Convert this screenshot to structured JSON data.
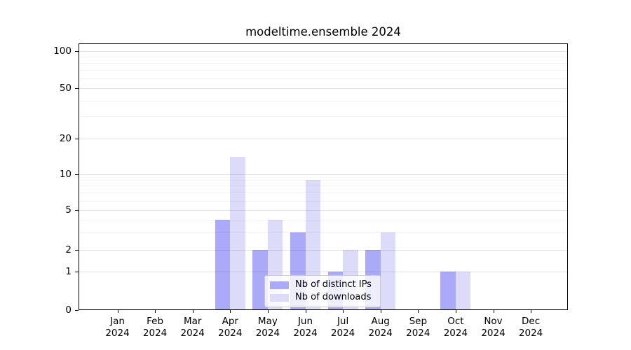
{
  "chart_data": {
    "type": "bar",
    "title": "modeltime.ensemble 2024",
    "x_categories": [
      {
        "month": "Jan",
        "year": "2024"
      },
      {
        "month": "Feb",
        "year": "2024"
      },
      {
        "month": "Mar",
        "year": "2024"
      },
      {
        "month": "Apr",
        "year": "2024"
      },
      {
        "month": "May",
        "year": "2024"
      },
      {
        "month": "Jun",
        "year": "2024"
      },
      {
        "month": "Jul",
        "year": "2024"
      },
      {
        "month": "Aug",
        "year": "2024"
      },
      {
        "month": "Sep",
        "year": "2024"
      },
      {
        "month": "Oct",
        "year": "2024"
      },
      {
        "month": "Nov",
        "year": "2024"
      },
      {
        "month": "Dec",
        "year": "2024"
      }
    ],
    "series": [
      {
        "name": "Nb of distinct IPs",
        "color": "#aaaaf8",
        "values": [
          0,
          0,
          0,
          4,
          2,
          3,
          1,
          2,
          0,
          1,
          0,
          0
        ]
      },
      {
        "name": "Nb of downloads",
        "color": "#dcdcfa",
        "values": [
          0,
          0,
          0,
          14,
          4,
          9,
          2,
          3,
          0,
          1,
          0,
          0
        ]
      }
    ],
    "y_axis": {
      "scale": "log-like",
      "ticks": [
        0,
        1,
        2,
        5,
        10,
        20,
        50,
        100
      ],
      "minor_gridlines": [
        3,
        4,
        6,
        7,
        8,
        9,
        30,
        40,
        60,
        70,
        80,
        90
      ],
      "range_top": 115
    },
    "legend": {
      "position": "bottom-center"
    },
    "grid": true
  }
}
